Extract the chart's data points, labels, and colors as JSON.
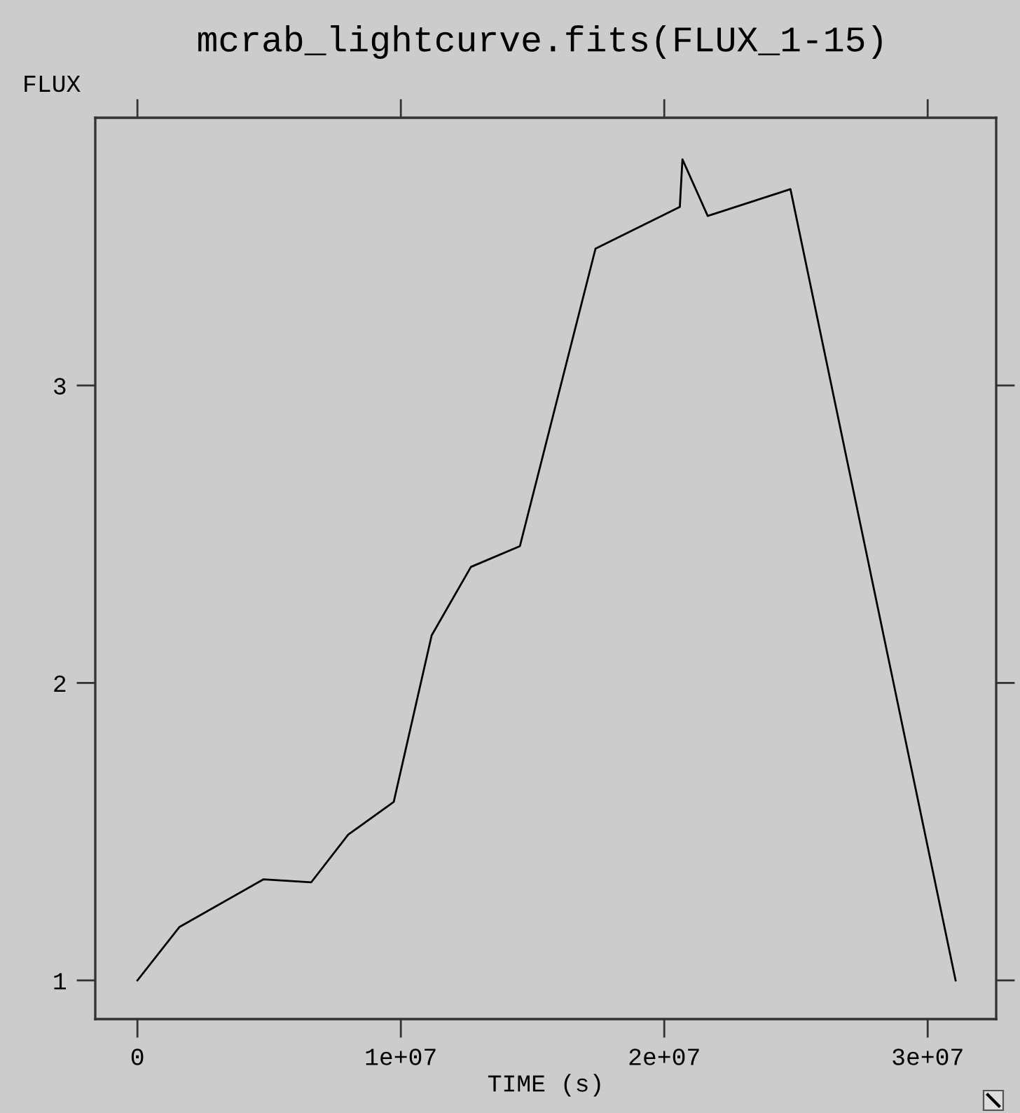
{
  "chart_data": {
    "type": "line",
    "title": "mcrab_lightcurve.fits(FLUX_1-15)",
    "xlabel": "TIME (s)",
    "ylabel": "FLUX",
    "x": [
      0,
      1600000,
      4790000,
      6600000,
      8000000,
      9730000,
      11170000,
      12660000,
      14520000,
      17390000,
      20590000,
      20690000,
      21650000,
      24790000,
      31060000
    ],
    "series": [
      {
        "color": "#000000",
        "values": [
          1.0,
          1.18,
          1.34,
          1.33,
          1.49,
          1.6,
          2.16,
          2.39,
          2.46,
          3.46,
          3.6,
          3.76,
          3.57,
          3.66,
          1.0
        ]
      }
    ],
    "xlim": [
      -1600000,
      32600000
    ],
    "xticks": [
      0,
      {
        "value": 10000000,
        "label": "1e+07"
      },
      {
        "value": 20000000,
        "label": "2e+07"
      },
      {
        "value": 30000000,
        "label": "3e+07"
      }
    ],
    "ylim": [
      0.87,
      3.9
    ],
    "yticks": [
      1,
      2,
      3
    ],
    "grid": false,
    "line_style": "solid"
  }
}
